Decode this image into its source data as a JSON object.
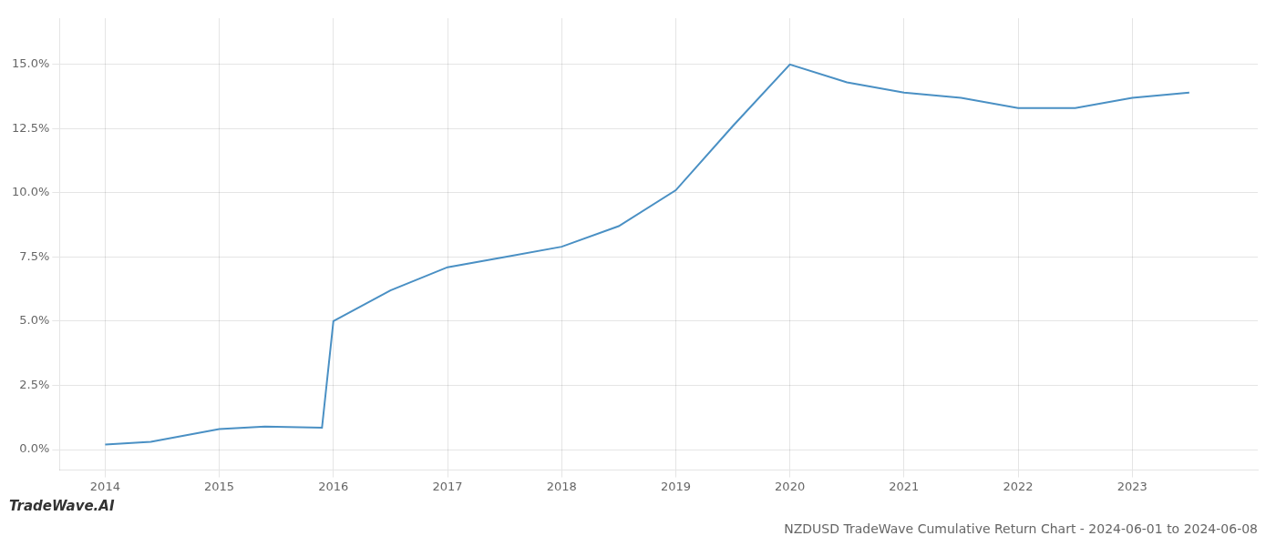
{
  "chart_data": {
    "type": "line",
    "title": "NZDUSD TradeWave Cumulative Return Chart - 2024-06-01 to 2024-06-08",
    "annotations": [
      "TradeWave.AI"
    ],
    "color": "#4a90c4",
    "x": [
      2014.0,
      2014.4,
      2015.0,
      2015.4,
      2015.9,
      2016.0,
      2016.5,
      2017.0,
      2017.5,
      2018.0,
      2018.5,
      2019.0,
      2019.5,
      2020.0,
      2020.5,
      2021.0,
      2021.5,
      2022.0,
      2022.5,
      2023.0,
      2023.5
    ],
    "values": [
      0.002,
      0.003,
      0.008,
      0.009,
      0.0085,
      0.05,
      0.062,
      0.071,
      0.075,
      0.079,
      0.087,
      0.101,
      0.126,
      0.15,
      0.143,
      0.139,
      0.137,
      0.133,
      0.133,
      0.137,
      0.139
    ],
    "xlim": [
      2013.6,
      2024.1
    ],
    "ylim": [
      -0.008,
      0.168
    ],
    "xticks": [
      2014,
      2015,
      2016,
      2017,
      2018,
      2019,
      2020,
      2021,
      2022,
      2023
    ],
    "yticks": [
      {
        "value": 0.0,
        "label": "0.0%"
      },
      {
        "value": 0.025,
        "label": "2.5%"
      },
      {
        "value": 0.05,
        "label": "5.0%"
      },
      {
        "value": 0.075,
        "label": "7.5%"
      },
      {
        "value": 0.1,
        "label": "10.0%"
      },
      {
        "value": 0.125,
        "label": "12.5%"
      },
      {
        "value": 0.15,
        "label": "15.0%"
      }
    ],
    "grid": true
  }
}
